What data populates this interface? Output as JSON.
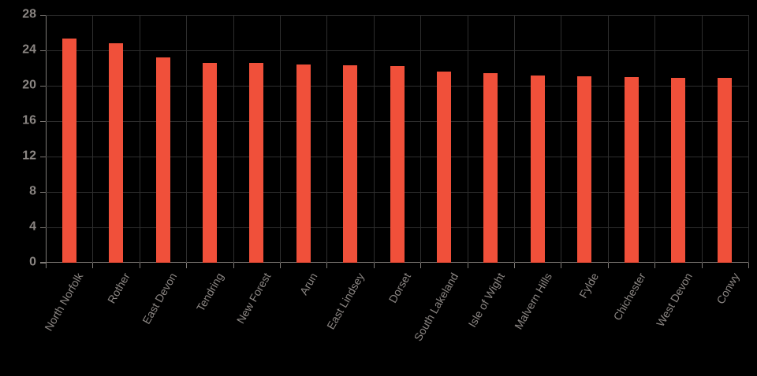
{
  "colors": {
    "background": "#000000",
    "bar": "#f0503a",
    "grid": "#2e2e2e",
    "axis": "#7e7a76",
    "text": "#8b8683"
  },
  "chart_data": {
    "type": "bar",
    "title": "",
    "xlabel": "",
    "ylabel": "",
    "categories": [
      "North Norfolk",
      "Rother",
      "East Devon",
      "Tendring",
      "New Forest",
      "Arun",
      "East Lindsey",
      "Dorset",
      "South Lakeland",
      "Isle of Wight",
      "Malvern Hills",
      "Fylde",
      "Chichester",
      "West Devon",
      "Conwy"
    ],
    "values": [
      25.3,
      24.8,
      23.2,
      22.6,
      22.6,
      22.4,
      22.3,
      22.2,
      21.6,
      21.4,
      21.2,
      21.1,
      21.0,
      20.9,
      20.9
    ],
    "ylim": [
      0,
      28
    ],
    "yticks": [
      0,
      4,
      8,
      12,
      16,
      20,
      24,
      28
    ],
    "ytick_labels": [
      "0",
      "4",
      "8",
      "12",
      "16",
      "20",
      "24",
      "28"
    ],
    "grid": true,
    "legend": false,
    "xlabel_rotation_deg": -60
  }
}
